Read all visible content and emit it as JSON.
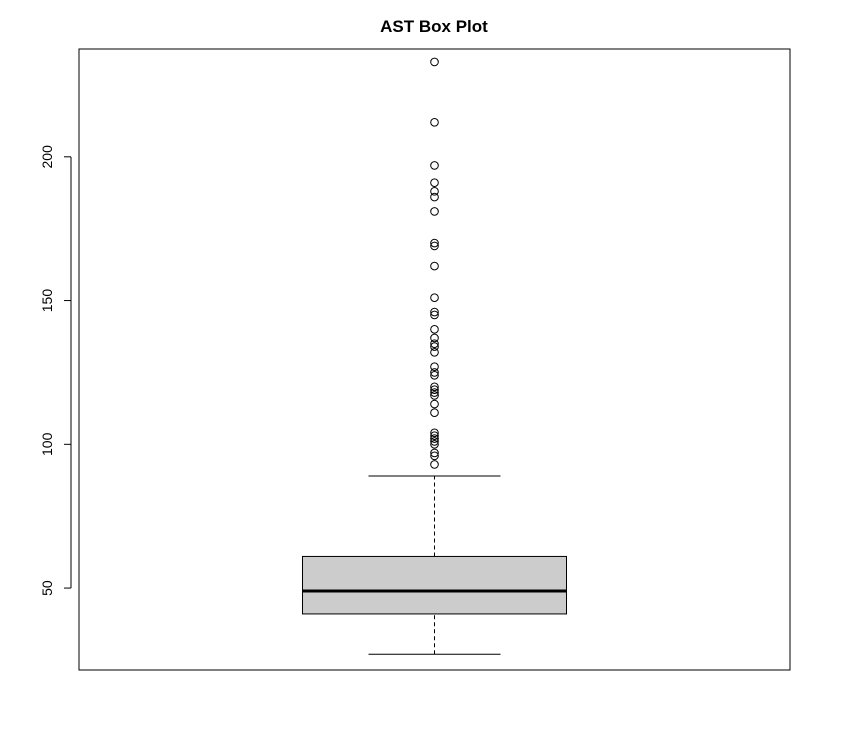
{
  "chart_data": {
    "type": "box",
    "title": "AST Box Plot",
    "xlabel": "",
    "ylabel": "",
    "ylim": [
      21.5,
      237.5
    ],
    "yticks": [
      50,
      100,
      150,
      200
    ],
    "ytick_labels": [
      "50",
      "100",
      "150",
      "200"
    ],
    "box": {
      "whisker_low": 27,
      "q1": 41,
      "median": 49,
      "q3": 61,
      "whisker_high": 89
    },
    "outliers": [
      233,
      212,
      197,
      191,
      188,
      186,
      181,
      170,
      169,
      162,
      151,
      146,
      145,
      140,
      137,
      135,
      134,
      132,
      127,
      125,
      124,
      120,
      119,
      118,
      117,
      114,
      111,
      104,
      103,
      102,
      101,
      100,
      97,
      96,
      93
    ],
    "colors": {
      "box_fill": "#cccccc",
      "stroke": "#000000"
    }
  }
}
